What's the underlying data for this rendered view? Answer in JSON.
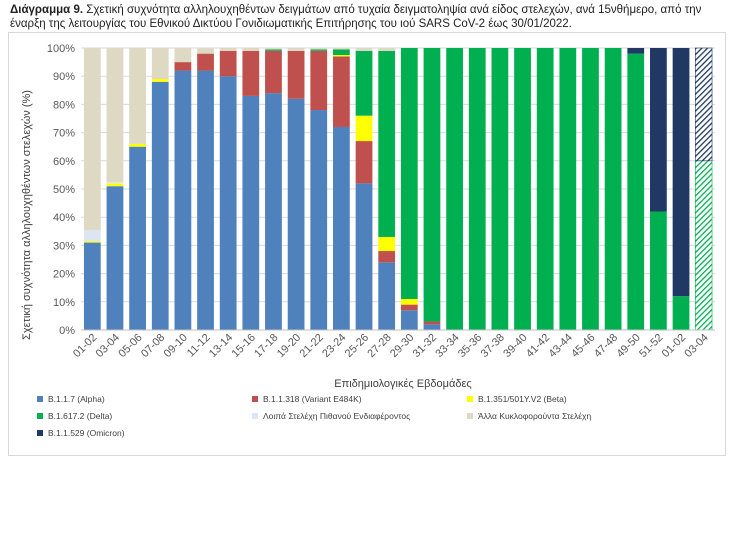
{
  "title": {
    "prefix": "Διάγραμμα 9.",
    "text": " Σχετική συχνότητα αλληλουχηθέντων δειγμάτων από τυχαία δειγματοληψία ανά είδος στελεχών, ανά 15νθήμερο, από την έναρξη της λειτουργίας του Εθνικού Δικτύου Γονιδιωματικής Επιτήρησης του ιού SARS CoV-2 έως 30/01/2022."
  },
  "chart_data": {
    "type": "bar",
    "stacked": true,
    "xlabel": "Επιδημιολογικές Εβδομάδες",
    "ylabel": "Σχετική συχνότητα αλληλουχηθέντων στελεχών (%)",
    "ylim": [
      0,
      100
    ],
    "yticks": [
      "0%",
      "10%",
      "20%",
      "30%",
      "40%",
      "50%",
      "60%",
      "70%",
      "80%",
      "90%",
      "100%"
    ],
    "grid": true,
    "legend_position": "bottom",
    "categories": [
      "01-02",
      "03-04",
      "05-06",
      "07-08",
      "09-10",
      "11-12",
      "13-14",
      "15-16",
      "17-18",
      "19-20",
      "21-22",
      "23-24",
      "25-26",
      "27-28",
      "29-30",
      "31-32",
      "33-34",
      "35-36",
      "37-38",
      "39-40",
      "41-42",
      "43-44",
      "45-46",
      "47-48",
      "49-50",
      "51-52",
      "01-02",
      "03-04"
    ],
    "hatched_last": true,
    "series": [
      {
        "name": "B.1.1.7 (Alpha)",
        "color": "#4f81bd",
        "values": [
          31,
          51,
          65,
          88,
          92,
          92,
          90,
          83,
          84,
          82,
          78,
          72,
          52,
          24,
          7,
          2,
          0,
          0,
          0,
          0,
          0,
          0,
          0,
          0,
          0,
          0,
          0,
          0
        ]
      },
      {
        "name": "B.1.1.318 (Variant E484K)",
        "color": "#c0504d",
        "values": [
          0,
          0,
          0,
          0,
          3,
          6,
          9,
          16,
          15,
          17,
          21,
          25,
          15,
          4,
          2,
          1,
          0,
          0,
          0,
          0,
          0,
          0,
          0,
          0,
          0,
          0,
          0,
          0
        ]
      },
      {
        "name": "B.1.351/501Y.V2 (Beta)",
        "color": "#ffff00",
        "values": [
          0.5,
          1,
          1,
          1,
          0,
          0,
          0,
          0,
          0,
          0,
          0,
          0.5,
          9,
          5,
          2,
          0,
          0,
          0,
          0,
          0,
          0,
          0,
          0,
          0,
          0,
          0,
          0,
          0
        ]
      },
      {
        "name": "B.1.617.2 (Delta)",
        "color": "#00b050",
        "values": [
          0,
          0,
          0,
          0,
          0,
          0,
          0,
          0,
          0.5,
          0,
          0.5,
          2,
          23,
          66,
          89,
          97,
          100,
          100,
          100,
          100,
          100,
          100,
          100,
          100,
          98,
          42,
          12,
          60
        ]
      },
      {
        "name": "Λοιπά Στελέχη Πιθανού Ενδιαφέροντος",
        "color": "#dce6f2",
        "values": [
          4,
          0.5,
          0,
          0,
          0,
          0,
          0,
          0,
          0,
          0,
          0,
          0,
          0,
          0,
          0,
          0,
          0,
          0,
          0,
          0,
          0,
          0,
          0,
          0,
          0,
          0,
          0,
          0
        ]
      },
      {
        "name": "Άλλα Κυκλοφορούντα Στελέχη",
        "color": "#ddd9c3",
        "values": [
          64.5,
          47.5,
          34,
          11,
          5,
          2,
          1,
          1,
          0.5,
          1,
          0.5,
          0.5,
          1,
          1,
          0,
          0,
          0,
          0,
          0,
          0,
          0,
          0,
          0,
          0,
          0,
          0,
          0,
          0
        ]
      },
      {
        "name": "B.1.1.529 (Omicron)",
        "color": "#1f3864",
        "values": [
          0,
          0,
          0,
          0,
          0,
          0,
          0,
          0,
          0,
          0,
          0,
          0,
          0,
          0,
          0,
          0,
          0,
          0,
          0,
          0,
          0,
          0,
          0,
          0,
          2,
          58,
          88,
          40
        ]
      }
    ]
  }
}
